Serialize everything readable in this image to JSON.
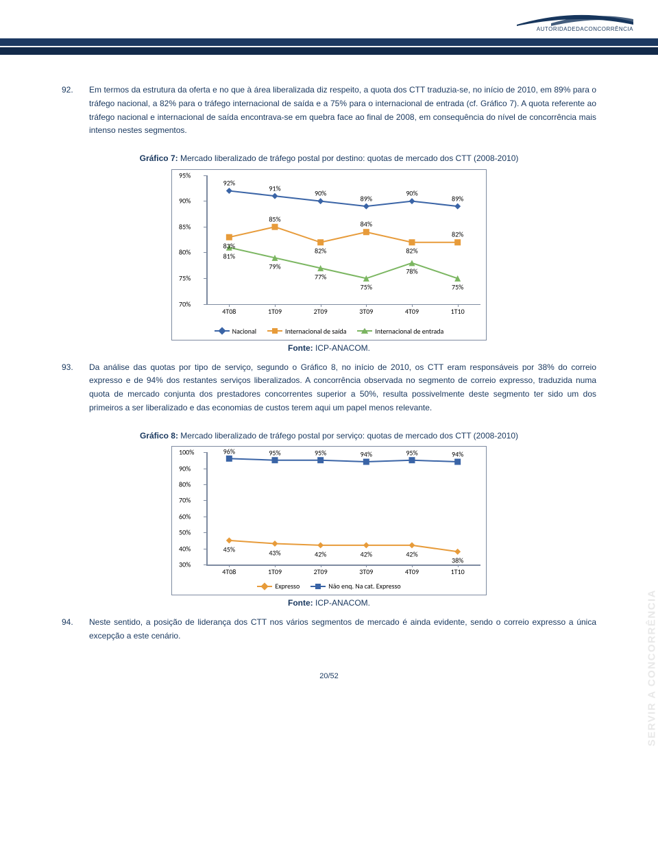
{
  "header": {
    "logo_text": "AUTORIDADEDACONCORRÊNCIA",
    "swoosh_color": "#17365d"
  },
  "side_label": "SERVIR A CONCORRÊNCIA",
  "paragraphs": {
    "p92_num": "92.",
    "p92": "Em termos da estrutura da oferta e no que à área liberalizada diz respeito, a quota dos CTT traduzia-se, no início de 2010, em 89% para o tráfego nacional, a 82% para o tráfego internacional de saída e a 75% para o internacional de entrada (cf. Gráfico 7). A quota referente ao tráfego nacional e internacional de saída encontrava-se em quebra face ao final de 2008, em consequência do nível de concorrência mais intenso nestes segmentos.",
    "p93_num": "93.",
    "p93": "Da análise das quotas por tipo de serviço, segundo o Gráfico 8, no início de 2010, os CTT eram responsáveis por 38% do correio expresso e de 94% dos restantes serviços liberalizados. A concorrência observada no segmento de correio expresso, traduzida numa quota de mercado conjunta dos prestadores concorrentes superior a 50%, resulta possivelmente deste segmento ter sido um dos primeiros a ser liberalizado e das economias de custos terem aqui um papel menos relevante.",
    "p94_num": "94.",
    "p94": "Neste sentido, a posição de liderança dos CTT nos vários segmentos de mercado é ainda evidente, sendo o correio expresso a única excepção a este cenário."
  },
  "chart7": {
    "title_bold": "Gráfico 7:",
    "title_rest": " Mercado liberalizado de tráfego postal por destino: quotas de mercado dos CTT (2008-2010)",
    "fonte_bold": "Fonte:",
    "fonte_rest": " ICP-ANACOM.",
    "ymin": 70,
    "ymax": 95,
    "ytick_step": 5,
    "categories": [
      "4T08",
      "1T09",
      "2T09",
      "3T09",
      "4T09",
      "1T10"
    ],
    "series": [
      {
        "name": "Nacional",
        "color": "#3a64a6",
        "marker": "diamond",
        "values": [
          92,
          91,
          90,
          89,
          90,
          89
        ]
      },
      {
        "name": "Internacional de saída",
        "color": "#e79b3a",
        "marker": "square",
        "values": [
          83,
          85,
          82,
          84,
          82,
          82
        ]
      },
      {
        "name": "Internacional de entrada",
        "color": "#7bb661",
        "marker": "triangle",
        "values": [
          81,
          79,
          77,
          75,
          78,
          75
        ]
      }
    ],
    "border_color": "#7d8aa0"
  },
  "chart8": {
    "title_bold": "Gráfico 8:",
    "title_rest": " Mercado liberalizado de tráfego postal por serviço: quotas de mercado dos CTT (2008-2010)",
    "fonte_bold": "Fonte:",
    "fonte_rest": " ICP-ANACOM.",
    "ymin": 30,
    "ymax": 100,
    "ytick_step": 10,
    "categories": [
      "4T08",
      "1T09",
      "2T09",
      "3T09",
      "4T09",
      "1T10"
    ],
    "series": [
      {
        "name": "Expresso",
        "color": "#e79b3a",
        "marker": "diamond",
        "values": [
          45,
          43,
          42,
          42,
          42,
          38
        ]
      },
      {
        "name": "Não enq. Na cat. Expresso",
        "color": "#3a64a6",
        "marker": "square",
        "values": [
          96,
          95,
          95,
          94,
          95,
          94
        ]
      }
    ],
    "border_color": "#7d8aa0"
  },
  "page_number": "20/52"
}
